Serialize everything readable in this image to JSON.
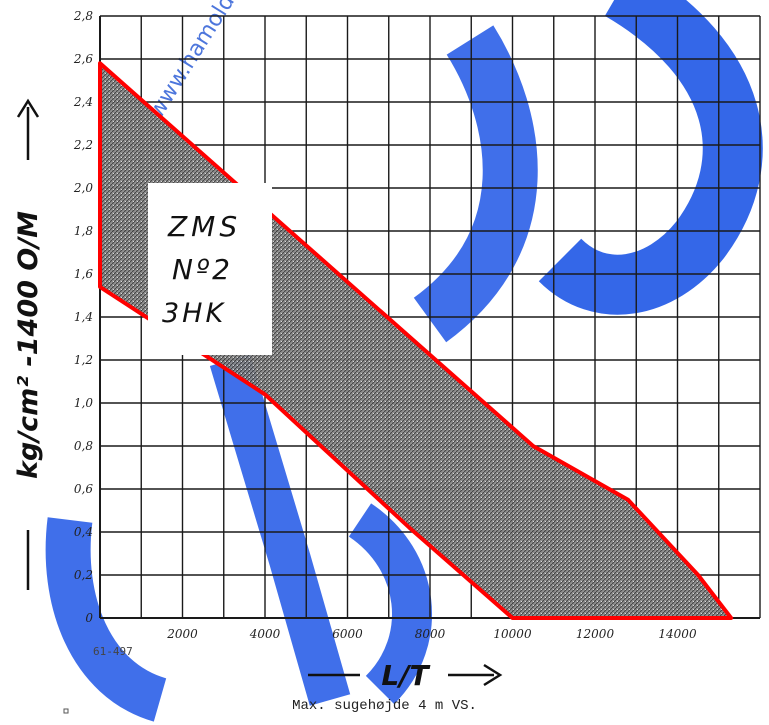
{
  "chart_data": {
    "type": "area",
    "title": "",
    "xlabel": "L/T",
    "ylabel": "kg/cm² -1400 O/M",
    "xlim": [
      0,
      16000
    ],
    "ylim": [
      0,
      2.8
    ],
    "x_ticks": [
      "2000",
      "4000",
      "6000",
      "8000",
      "10000",
      "12000",
      "14000"
    ],
    "y_ticks": [
      "0",
      "0,2",
      "0,4",
      "0,6",
      "0,8",
      "1,0",
      "1,2",
      "1,4",
      "1,6",
      "1,8",
      "2,0",
      "2,2",
      "2,4",
      "2,6",
      "2,8"
    ],
    "grid": true,
    "regions": [
      {
        "fill": "shaded",
        "outline_color": "#ff0000",
        "points": [
          {
            "x": 0,
            "y": 2.58
          },
          {
            "x": 10500,
            "y": 0.8
          },
          {
            "x": 12800,
            "y": 0.55
          },
          {
            "x": 14500,
            "y": 0.2
          },
          {
            "x": 15300,
            "y": 0.0
          },
          {
            "x": 10000,
            "y": 0.0
          },
          {
            "x": 7500,
            "y": 0.42
          },
          {
            "x": 4000,
            "y": 1.04
          },
          {
            "x": 0,
            "y": 1.54
          }
        ]
      }
    ],
    "annotations": [
      "ZMS",
      "Nº2",
      "3HK"
    ]
  },
  "labels": {
    "figure_code": "61-497",
    "caption": "Max. sugehøjde 4 m VS.",
    "watermark": "www.hamolding.dk"
  }
}
